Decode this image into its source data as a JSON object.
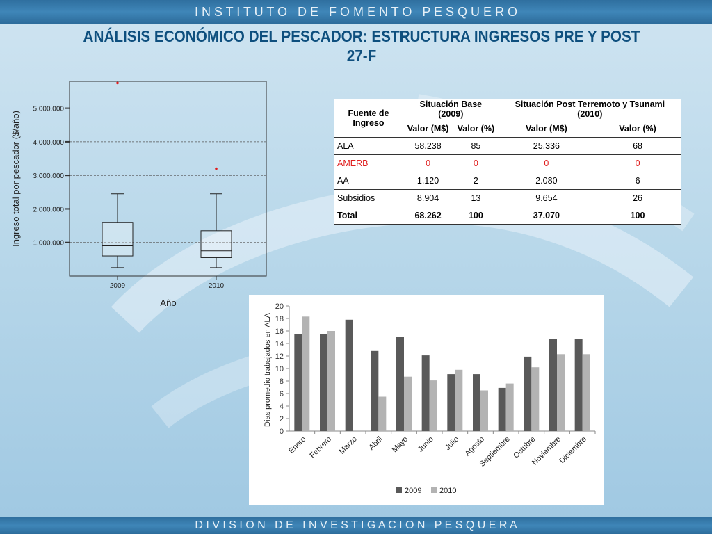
{
  "header_banner": "I N S T I T U T O   D E   F O M E N T O   P E S Q U E R O",
  "footer_banner": "D I V I S I O N   D E   I N V E S T I G A C I O N   P E S Q U E R A",
  "title_line1": "ANÁLISIS ECONÓMICO DEL PESCADOR: ESTRUCTURA INGRESOS PRE Y POST",
  "title_line2": "27-F",
  "colors": {
    "title": "#0e4f7e",
    "bar_2009": "#595959",
    "bar_2010": "#b3b3b3",
    "outlier": "#e01e1e",
    "amerb_row": "#e01e1e"
  },
  "table": {
    "header_fuente": "Fuente de Ingreso",
    "header_base": "Situación Base (2009)",
    "header_post": "Situación Post Terremoto y Tsunami (2010)",
    "col_valor_m": "Valor (M$)",
    "col_valor_pct": "Valor (%)",
    "col_valor_m2": "Valor (M$)",
    "col_valor_pct2": "Valor  (%)",
    "rows": [
      {
        "fuente": "ALA",
        "v2009": "58.238",
        "p2009": "85",
        "v2010": "25.336",
        "p2010": "68"
      },
      {
        "fuente": "AMERB",
        "v2009": "0",
        "p2009": "0",
        "v2010": "0",
        "p2010": "0"
      },
      {
        "fuente": "AA",
        "v2009": "1.120",
        "p2009": "2",
        "v2010": "2.080",
        "p2010": "6"
      },
      {
        "fuente": "Subsidios",
        "v2009": "8.904",
        "p2009": "13",
        "v2010": "9.654",
        "p2010": "26"
      },
      {
        "fuente": "Total",
        "v2009": "68.262",
        "p2009": "100",
        "v2010": "37.070",
        "p2010": "100"
      }
    ]
  },
  "chart_data": [
    {
      "type": "box",
      "xlabel": "Año",
      "ylabel": "Ingreso total por pescador ($/año)",
      "yticks": [
        1000000,
        2000000,
        3000000,
        4000000,
        5000000
      ],
      "ytick_labels": [
        "1.000.000",
        "2.000.000",
        "3.000.000",
        "4.000.000",
        "5.000.000"
      ],
      "ylim": [
        0,
        5800000
      ],
      "categories": [
        "2009",
        "2010"
      ],
      "boxes": [
        {
          "category": "2009",
          "whisker_low": 250000,
          "q1": 600000,
          "median": 900000,
          "q3": 1600000,
          "whisker_high": 2450000,
          "outliers": [
            5750000
          ]
        },
        {
          "category": "2010",
          "whisker_low": 250000,
          "q1": 550000,
          "median": 750000,
          "q3": 1350000,
          "whisker_high": 2450000,
          "outliers": [
            3200000
          ]
        }
      ],
      "grid": true
    },
    {
      "type": "bar",
      "ylabel": "Dias promedio trabajados en ALA",
      "xlabel": "",
      "categories": [
        "Enero",
        "Febrero",
        "Marzo",
        "Abril",
        "Mayo",
        "Junio",
        "Julio",
        "Agosto",
        "Septiembre",
        "Octubre",
        "Noviembre",
        "Diciembre"
      ],
      "series": [
        {
          "name": "2009",
          "values": [
            15.5,
            15.5,
            17.8,
            12.8,
            15.0,
            12.1,
            9.1,
            9.1,
            6.9,
            11.9,
            14.7,
            14.7
          ]
        },
        {
          "name": "2010",
          "values": [
            18.3,
            16.0,
            0,
            5.5,
            8.7,
            8.1,
            9.8,
            6.5,
            7.6,
            10.2,
            12.3,
            12.3
          ]
        }
      ],
      "ylim": [
        0,
        20
      ],
      "yticks": [
        0,
        2,
        4,
        6,
        8,
        10,
        12,
        14,
        16,
        18,
        20
      ],
      "legend": "bottom",
      "grid": false
    }
  ]
}
